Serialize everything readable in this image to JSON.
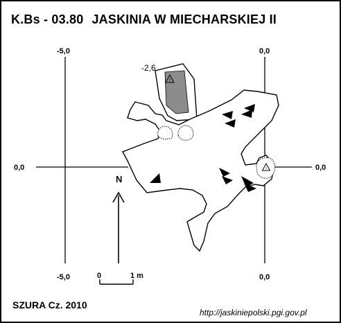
{
  "title": {
    "code": "K.Bs - 03.80",
    "name": "JASKINIA W MIECHARSKIEJ II"
  },
  "grid": {
    "top_left": "-5,0",
    "top_right": "0,0",
    "left_mid": "0,0",
    "right_mid": "0,0",
    "bottom_left": "-5,0",
    "bottom_right": "0,0"
  },
  "depth_label": "-2,6",
  "north_label": "N",
  "scale": {
    "start_label": "0",
    "end_label": "1 m"
  },
  "author": "SZURA Cz. 2010",
  "source_url": "http://jaskiniepolski.pgi.gov.pl",
  "colors": {
    "ink": "#000000",
    "shading": "#8c8c8c",
    "paper": "#ffffff"
  },
  "icons": [
    "warning-triangle-icon",
    "north-arrow-icon",
    "slope-hachure-icon"
  ]
}
